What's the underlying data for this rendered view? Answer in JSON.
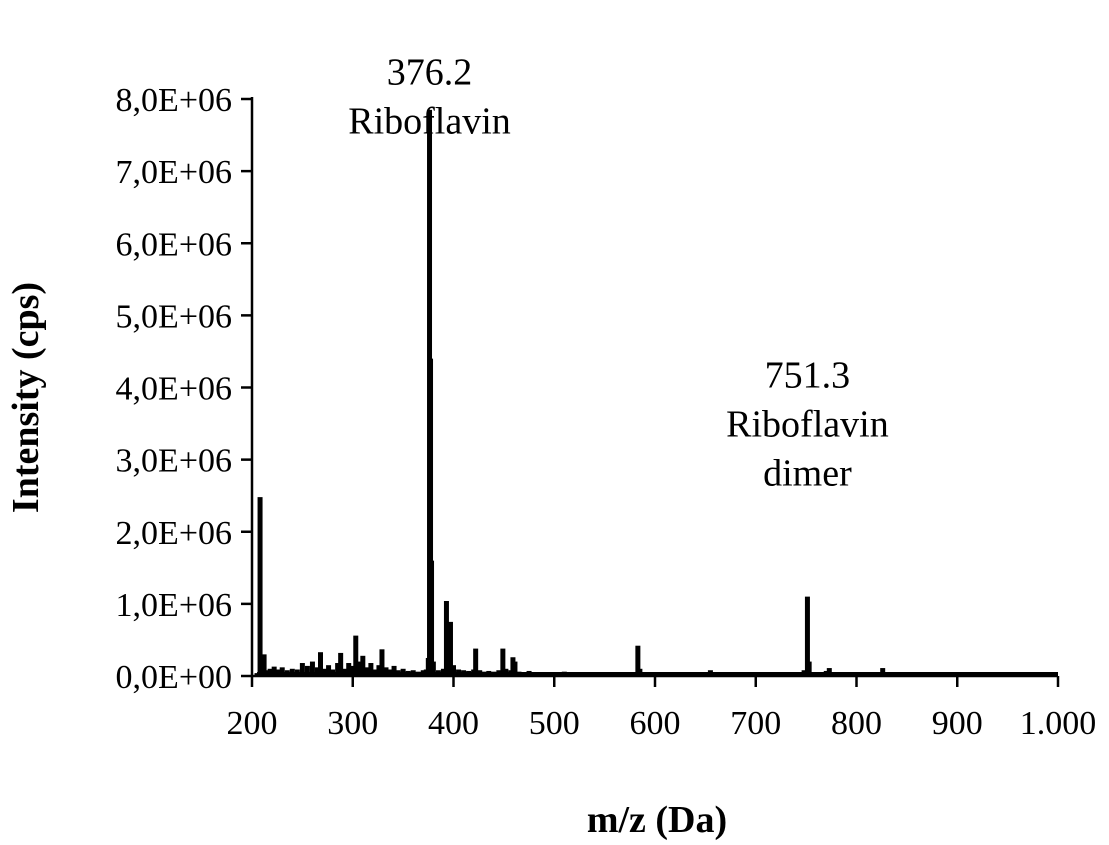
{
  "chart_data": {
    "type": "bar",
    "xlabel": "m/z (Da)",
    "ylabel": "Intensity (cps)",
    "xlim": [
      200,
      1000
    ],
    "ylim": [
      0,
      8000000
    ],
    "x_ticks": [
      {
        "value": 200,
        "label": "200"
      },
      {
        "value": 300,
        "label": "300"
      },
      {
        "value": 400,
        "label": "400"
      },
      {
        "value": 500,
        "label": "500"
      },
      {
        "value": 600,
        "label": "600"
      },
      {
        "value": 700,
        "label": "700"
      },
      {
        "value": 800,
        "label": "800"
      },
      {
        "value": 900,
        "label": "900"
      },
      {
        "value": 1000,
        "label": "1.000"
      }
    ],
    "y_ticks": [
      {
        "value": 0,
        "label": "0,0E+00"
      },
      {
        "value": 1000000,
        "label": "1,0E+06"
      },
      {
        "value": 2000000,
        "label": "2,0E+06"
      },
      {
        "value": 3000000,
        "label": "3,0E+06"
      },
      {
        "value": 4000000,
        "label": "4,0E+06"
      },
      {
        "value": 5000000,
        "label": "5,0E+06"
      },
      {
        "value": 6000000,
        "label": "6,0E+06"
      },
      {
        "value": 7000000,
        "label": "7,0E+06"
      },
      {
        "value": 8000000,
        "label": "8,0E+06"
      }
    ],
    "grid": false,
    "legend": "none",
    "series": [
      {
        "color": "#000000",
        "points": [
          [
            205,
            40000
          ],
          [
            208,
            2480000
          ],
          [
            210,
            60000
          ],
          [
            212,
            300000
          ],
          [
            215,
            80000
          ],
          [
            218,
            100000
          ],
          [
            222,
            130000
          ],
          [
            226,
            90000
          ],
          [
            230,
            120000
          ],
          [
            235,
            80000
          ],
          [
            240,
            100000
          ],
          [
            245,
            90000
          ],
          [
            250,
            180000
          ],
          [
            255,
            140000
          ],
          [
            260,
            200000
          ],
          [
            265,
            120000
          ],
          [
            268,
            330000
          ],
          [
            272,
            100000
          ],
          [
            276,
            150000
          ],
          [
            280,
            90000
          ],
          [
            285,
            180000
          ],
          [
            288,
            320000
          ],
          [
            292,
            100000
          ],
          [
            296,
            180000
          ],
          [
            300,
            140000
          ],
          [
            303,
            560000
          ],
          [
            306,
            200000
          ],
          [
            310,
            280000
          ],
          [
            314,
            120000
          ],
          [
            318,
            180000
          ],
          [
            322,
            90000
          ],
          [
            326,
            150000
          ],
          [
            329,
            370000
          ],
          [
            333,
            120000
          ],
          [
            337,
            90000
          ],
          [
            341,
            140000
          ],
          [
            345,
            80000
          ],
          [
            350,
            100000
          ],
          [
            355,
            70000
          ],
          [
            360,
            80000
          ],
          [
            365,
            60000
          ],
          [
            370,
            80000
          ],
          [
            373,
            90000
          ],
          [
            375,
            250000
          ],
          [
            376.2,
            7850000
          ],
          [
            377.2,
            4400000
          ],
          [
            378.2,
            1600000
          ],
          [
            380,
            200000
          ],
          [
            385,
            80000
          ],
          [
            390,
            100000
          ],
          [
            393,
            1040000
          ],
          [
            395,
            200000
          ],
          [
            397,
            750000
          ],
          [
            400,
            150000
          ],
          [
            405,
            90000
          ],
          [
            410,
            80000
          ],
          [
            415,
            70000
          ],
          [
            420,
            90000
          ],
          [
            422,
            380000
          ],
          [
            426,
            80000
          ],
          [
            430,
            60000
          ],
          [
            435,
            70000
          ],
          [
            440,
            60000
          ],
          [
            445,
            80000
          ],
          [
            449,
            380000
          ],
          [
            452,
            100000
          ],
          [
            457,
            80000
          ],
          [
            459,
            260000
          ],
          [
            461,
            200000
          ],
          [
            465,
            60000
          ],
          [
            470,
            50000
          ],
          [
            475,
            70000
          ],
          [
            480,
            40000
          ],
          [
            490,
            50000
          ],
          [
            500,
            40000
          ],
          [
            510,
            60000
          ],
          [
            520,
            40000
          ],
          [
            530,
            50000
          ],
          [
            540,
            40000
          ],
          [
            550,
            30000
          ],
          [
            560,
            40000
          ],
          [
            570,
            30000
          ],
          [
            580,
            50000
          ],
          [
            583,
            420000
          ],
          [
            585,
            100000
          ],
          [
            590,
            40000
          ],
          [
            600,
            30000
          ],
          [
            610,
            40000
          ],
          [
            620,
            30000
          ],
          [
            630,
            40000
          ],
          [
            640,
            30000
          ],
          [
            650,
            40000
          ],
          [
            655,
            80000
          ],
          [
            660,
            30000
          ],
          [
            670,
            40000
          ],
          [
            680,
            30000
          ],
          [
            690,
            40000
          ],
          [
            700,
            30000
          ],
          [
            710,
            40000
          ],
          [
            720,
            30000
          ],
          [
            730,
            40000
          ],
          [
            740,
            30000
          ],
          [
            748,
            80000
          ],
          [
            751.3,
            1100000
          ],
          [
            753,
            200000
          ],
          [
            758,
            40000
          ],
          [
            765,
            50000
          ],
          [
            770,
            70000
          ],
          [
            773,
            110000
          ],
          [
            780,
            40000
          ],
          [
            790,
            30000
          ],
          [
            800,
            40000
          ],
          [
            810,
            30000
          ],
          [
            820,
            40000
          ],
          [
            826,
            110000
          ],
          [
            830,
            40000
          ],
          [
            840,
            30000
          ],
          [
            850,
            40000
          ],
          [
            855,
            50000
          ],
          [
            860,
            30000
          ],
          [
            870,
            30000
          ],
          [
            880,
            30000
          ],
          [
            890,
            30000
          ],
          [
            900,
            30000
          ],
          [
            910,
            30000
          ],
          [
            920,
            30000
          ],
          [
            930,
            30000
          ],
          [
            940,
            30000
          ],
          [
            950,
            30000
          ],
          [
            960,
            40000
          ],
          [
            970,
            30000
          ],
          [
            980,
            30000
          ],
          [
            990,
            30000
          ]
        ]
      }
    ],
    "annotations": [
      {
        "x": 376.2,
        "y_top": 8700000,
        "lines": [
          "376.2",
          "Riboflavin"
        ]
      },
      {
        "x": 751.3,
        "y_top": 4500000,
        "lines": [
          "751.3",
          "Riboflavin",
          "dimer"
        ]
      }
    ]
  }
}
